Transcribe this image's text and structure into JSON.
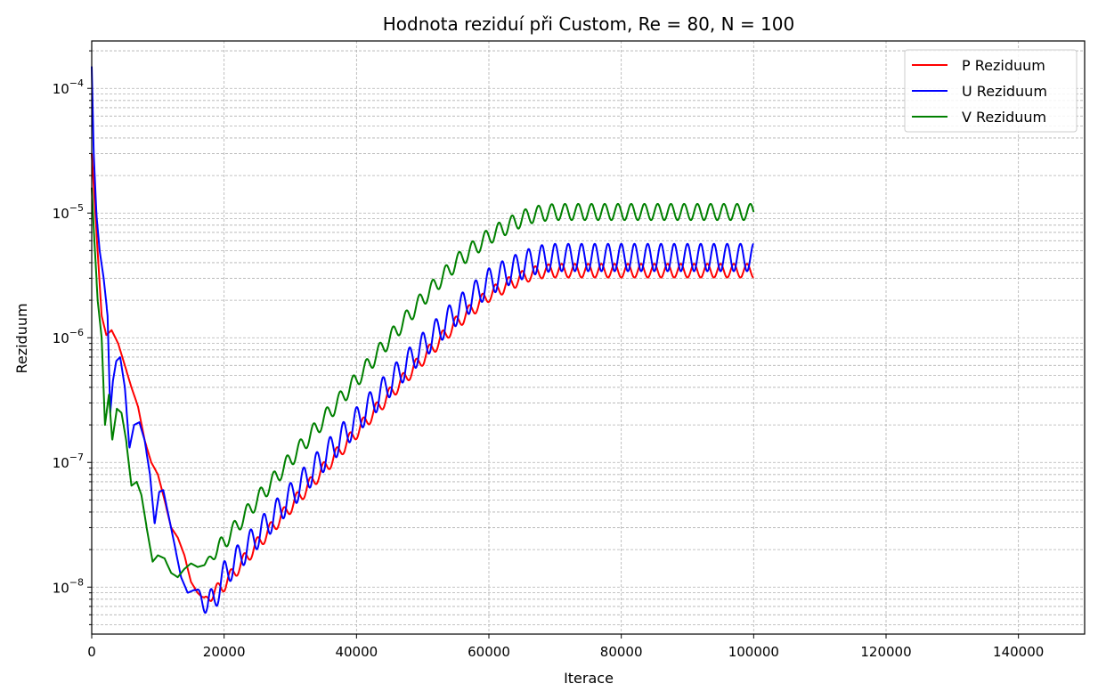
{
  "chart_data": {
    "type": "line",
    "title": "Hodnota reziduí při Custom, Re = 80, N = 100",
    "xlabel": "Iterace",
    "ylabel": "Reziduum",
    "xlim": [
      0,
      150000
    ],
    "ylim": [
      4.2e-09,
      0.00024
    ],
    "yscale": "log",
    "grid": true,
    "legend_position": "top-right",
    "x_ticks": [
      0,
      20000,
      40000,
      60000,
      80000,
      100000,
      120000,
      140000
    ],
    "x_tick_labels": [
      "0",
      "20000",
      "40000",
      "60000",
      "80000",
      "100000",
      "120000",
      "140000"
    ],
    "y_ticks": [
      1e-08,
      1e-07,
      1e-06,
      1e-05,
      0.0001
    ],
    "y_tick_labels": [
      {
        "base": "10",
        "exp": "−8"
      },
      {
        "base": "10",
        "exp": "−7"
      },
      {
        "base": "10",
        "exp": "−6"
      },
      {
        "base": "10",
        "exp": "−5"
      },
      {
        "base": "10",
        "exp": "−4"
      }
    ],
    "series": [
      {
        "name": "P Reziduum",
        "color": "#ff0000",
        "x": [
          0,
          800,
          1500,
          2200,
          3000,
          4000,
          5000,
          6000,
          7000,
          8000,
          9000,
          10000,
          11000,
          12000,
          13000,
          14000,
          15000,
          16000,
          17000,
          18000,
          20000,
          25000,
          30000,
          35000,
          40000,
          45000,
          50000,
          55000,
          60000,
          63000,
          66000,
          68000,
          70000,
          75000,
          80000,
          85000,
          90000,
          95000,
          100000
        ],
        "y": [
          3e-05,
          6e-06,
          1.5e-06,
          1.05e-06,
          1.15e-06,
          9e-07,
          6e-07,
          4e-07,
          2.8e-07,
          1.5e-07,
          1e-07,
          8e-08,
          5e-08,
          3e-08,
          2.5e-08,
          1.8e-08,
          1.1e-08,
          9e-09,
          8e-09,
          8.5e-09,
          1.05e-08,
          2.2e-08,
          4.4e-08,
          8.8e-08,
          1.75e-07,
          3.5e-07,
          6.8e-07,
          1.3e-06,
          2.2e-06,
          2.7e-06,
          3.2e-06,
          3.4e-06,
          3.45e-06,
          3.45e-06,
          3.45e-06,
          3.45e-06,
          3.45e-06,
          3.45e-06,
          3.45e-06
        ],
        "osc_start": 16500,
        "osc_period": 2000,
        "osc_amplitude_decades": 0.055
      },
      {
        "name": "U Reziduum",
        "color": "#0000ff",
        "x": [
          0,
          300,
          700,
          1200,
          1800,
          2400,
          2800,
          3200,
          3700,
          4300,
          5000,
          5700,
          6400,
          7200,
          8000,
          8800,
          9500,
          10200,
          10800,
          11500,
          12500,
          13500,
          14500,
          15500,
          16500,
          17500,
          18500,
          20000,
          25000,
          30000,
          35000,
          40000,
          45000,
          50000,
          55000,
          60000,
          63000,
          66000,
          68000,
          70000,
          75000,
          80000,
          85000,
          90000,
          95000,
          100000
        ],
        "y": [
          0.00015,
          3e-05,
          1e-05,
          5e-06,
          3e-06,
          1.5e-06,
          2.5e-07,
          4.5e-07,
          6.5e-07,
          7e-07,
          4e-07,
          1.3e-07,
          2e-07,
          2.1e-07,
          1.5e-07,
          8e-08,
          3.2e-08,
          5.8e-08,
          6e-08,
          4e-08,
          2.2e-08,
          1.2e-08,
          9e-09,
          9.5e-09,
          8.5e-09,
          7e-09,
          8e-09,
          1.25e-08,
          2.6e-08,
          5.3e-08,
          1.08e-07,
          2.15e-07,
          4.3e-07,
          8.5e-07,
          1.6e-06,
          2.8e-06,
          3.4e-06,
          4e-06,
          4.3e-06,
          4.4e-06,
          4.4e-06,
          4.4e-06,
          4.4e-06,
          4.4e-06,
          4.4e-06,
          4.4e-06
        ],
        "osc_start": 15500,
        "osc_period": 2000,
        "osc_amplitude_decades": 0.11
      },
      {
        "name": "V Reziduum",
        "color": "#008000",
        "x": [
          0,
          400,
          900,
          1500,
          2000,
          2600,
          3100,
          3800,
          4500,
          5200,
          6000,
          6800,
          7500,
          8300,
          9200,
          10000,
          11000,
          12000,
          13000,
          14000,
          15000,
          16000,
          17000,
          18000,
          20000,
          25000,
          30000,
          35000,
          40000,
          45000,
          50000,
          55000,
          60000,
          63000,
          66000,
          68000,
          70000,
          75000,
          80000,
          85000,
          90000,
          95000,
          100000
        ],
        "y": [
          1.6e-05,
          6e-06,
          2e-06,
          1e-06,
          2e-07,
          3.5e-07,
          1.5e-07,
          2.7e-07,
          2.5e-07,
          1.5e-07,
          6.5e-08,
          7e-08,
          5.5e-08,
          3e-08,
          1.6e-08,
          1.8e-08,
          1.7e-08,
          1.3e-08,
          1.2e-08,
          1.4e-08,
          1.55e-08,
          1.45e-08,
          1.5e-08,
          1.75e-08,
          2.3e-08,
          5e-08,
          1.05e-07,
          2.2e-07,
          4.6e-07,
          9.8e-07,
          2.05e-06,
          4e-06,
          6.5e-06,
          8e-06,
          9.5e-06,
          1e-05,
          1.02e-05,
          1.02e-05,
          1.02e-05,
          1.02e-05,
          1.02e-05,
          1.02e-05,
          1.02e-05
        ],
        "osc_start": 17000,
        "osc_period": 2000,
        "osc_amplitude_decades": 0.065
      }
    ]
  }
}
